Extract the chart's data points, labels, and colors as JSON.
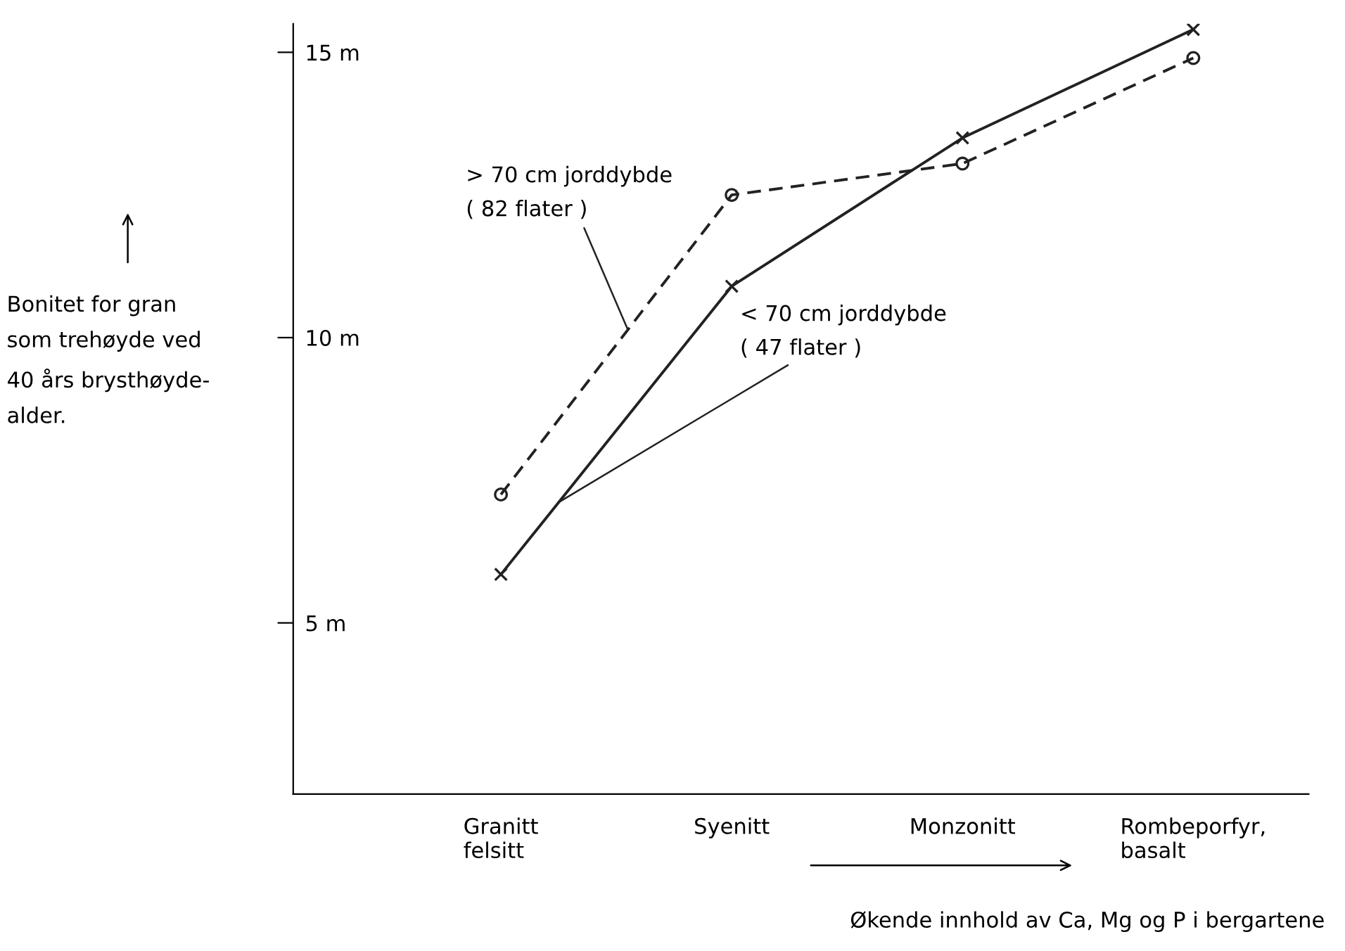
{
  "chart_data": {
    "type": "line",
    "categories": [
      "Granitt\nfelsitt",
      "Syenitt",
      "Monzonitt",
      "Rombeporfyr,\nbasalt"
    ],
    "series": [
      {
        "name": "> 70 cm jorddybde\n( 82 flater )",
        "color": "#222222",
        "line_style": "dashed",
        "marker": "circle",
        "values": [
          7.25,
          12.5,
          13.05,
          14.9
        ]
      },
      {
        "name": "< 70 cm jorddybde\n( 47 flater )",
        "color": "#222222",
        "line_style": "solid",
        "marker": "cross",
        "values": [
          5.85,
          10.9,
          13.5,
          15.4
        ]
      }
    ],
    "ylabel": "Bonitet for gran\nsom trehøyde ved\n40 års brysthøyde-\nalder.",
    "xlabel": "Økende innhold av Ca, Mg og P i bergartene",
    "ylim": [
      2,
      15.5
    ],
    "yticks": [
      {
        "value": 5,
        "label": "5 m"
      },
      {
        "value": 10,
        "label": "10 m"
      },
      {
        "value": 15,
        "label": "15 m"
      }
    ],
    "grid": false,
    "legend": false
  }
}
